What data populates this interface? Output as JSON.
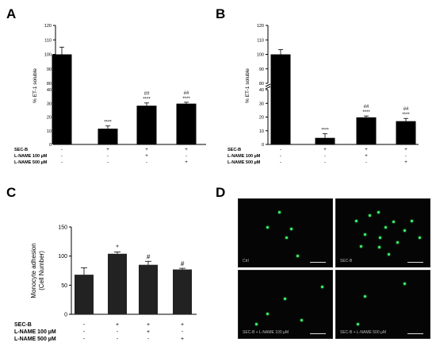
{
  "panels": {
    "A": {
      "letter": "A"
    },
    "B": {
      "letter": "B"
    },
    "C": {
      "letter": "C"
    },
    "D": {
      "letter": "D"
    }
  },
  "chart_data": [
    {
      "id": "A",
      "type": "bar",
      "ylabel": "% ET-1 soluble",
      "axis_break": {
        "lower": [
          0,
          40
        ],
        "upper": [
          80,
          120
        ]
      },
      "upper_ticks": [
        80,
        90,
        100,
        110,
        120
      ],
      "lower_ticks": [
        0,
        10,
        20,
        30,
        40
      ],
      "categories": [
        "Ctrl",
        "SEC-B",
        "SEC-B + L-NAME 100 µM",
        "SEC-B + L-NAME 500 µM"
      ],
      "values": [
        100,
        11.5,
        28.3,
        29.8
      ],
      "errors": [
        5,
        2,
        2,
        1
      ],
      "annotations": [
        [
          "",
          ""
        ],
        [
          "****",
          ""
        ],
        [
          "****",
          "##"
        ],
        [
          "****",
          "##"
        ]
      ],
      "conditions": [
        {
          "label": "SEC-B",
          "marks": [
            "-",
            "+",
            "+",
            "+"
          ]
        },
        {
          "label": "L-NAME 100 µM",
          "marks": [
            "-",
            "-",
            "+",
            "-"
          ]
        },
        {
          "label": "L-NAME 500 µM",
          "marks": [
            "-",
            "-",
            "-",
            "+"
          ]
        }
      ]
    },
    {
      "id": "B",
      "type": "bar",
      "ylabel": "% ET-1 soluble",
      "axis_break": {
        "lower": [
          0,
          40
        ],
        "upper": [
          80,
          120
        ]
      },
      "upper_ticks": [
        80,
        90,
        100,
        110,
        120
      ],
      "lower_ticks": [
        0,
        10,
        20,
        30,
        40
      ],
      "categories": [
        "Ctrl",
        "SEC-B",
        "SEC-B + L-NAME 100 µM",
        "SEC-B + L-NAME 500 µM"
      ],
      "values": [
        100,
        4.8,
        19.8,
        17.0
      ],
      "errors": [
        3.3,
        3,
        1,
        2
      ],
      "annotations": [
        [
          "",
          ""
        ],
        [
          "****",
          ""
        ],
        [
          "****",
          "##"
        ],
        [
          "****",
          "##"
        ]
      ],
      "conditions": [
        {
          "label": "SEC-B",
          "marks": [
            "-",
            "+",
            "+",
            "+"
          ]
        },
        {
          "label": "L-NAME 100 µM",
          "marks": [
            "-",
            "-",
            "+",
            "-"
          ]
        },
        {
          "label": "L-NAME 500 µM",
          "marks": [
            "-",
            "-",
            "-",
            "+"
          ]
        }
      ]
    },
    {
      "id": "C",
      "type": "bar",
      "ylabel": [
        "Monocyte adhesion",
        "(Cell Number)"
      ],
      "ylim": [
        0,
        150
      ],
      "ticks": [
        0,
        50,
        100,
        150
      ],
      "categories": [
        "Ctrl",
        "SEC-B",
        "SEC-B + L-NAME 100 µM",
        "SEC-B + L-NAME 500 µM"
      ],
      "values": [
        68,
        104,
        85,
        77
      ],
      "errors": [
        12,
        3,
        6,
        2
      ],
      "annotations": [
        "",
        "*",
        "#",
        "#"
      ],
      "conditions": [
        {
          "label": "SEC-B",
          "marks": [
            "-",
            "+",
            "+",
            "+"
          ]
        },
        {
          "label": "L-NAME 100 µM",
          "marks": [
            "-",
            "-",
            "+",
            "-"
          ]
        },
        {
          "label": "L-NAME 500 µM",
          "marks": [
            "-",
            "-",
            "-",
            "+"
          ]
        }
      ]
    }
  ],
  "micrographs": [
    {
      "label": "Ctrl",
      "cells": [
        [
          0.42,
          0.18
        ],
        [
          0.3,
          0.4
        ],
        [
          0.55,
          0.42
        ],
        [
          0.5,
          0.55
        ],
        [
          0.62,
          0.82
        ]
      ]
    },
    {
      "label": "SEC-B",
      "cells": [
        [
          0.35,
          0.22
        ],
        [
          0.44,
          0.18
        ],
        [
          0.6,
          0.32
        ],
        [
          0.52,
          0.4
        ],
        [
          0.46,
          0.55
        ],
        [
          0.3,
          0.5
        ],
        [
          0.25,
          0.68
        ],
        [
          0.45,
          0.7
        ],
        [
          0.64,
          0.62
        ],
        [
          0.72,
          0.45
        ],
        [
          0.8,
          0.3
        ],
        [
          0.88,
          0.55
        ],
        [
          0.55,
          0.8
        ],
        [
          0.2,
          0.3
        ]
      ]
    },
    {
      "label": "SEC-B + L-NAME 100 µM",
      "cells": [
        [
          0.88,
          0.22
        ],
        [
          0.48,
          0.4
        ],
        [
          0.66,
          0.72
        ],
        [
          0.18,
          0.78
        ],
        [
          0.3,
          0.62
        ]
      ]
    },
    {
      "label": "SEC-B + L-NAME 500 µM",
      "cells": [
        [
          0.3,
          0.36
        ],
        [
          0.72,
          0.18
        ],
        [
          0.22,
          0.78
        ]
      ]
    }
  ]
}
